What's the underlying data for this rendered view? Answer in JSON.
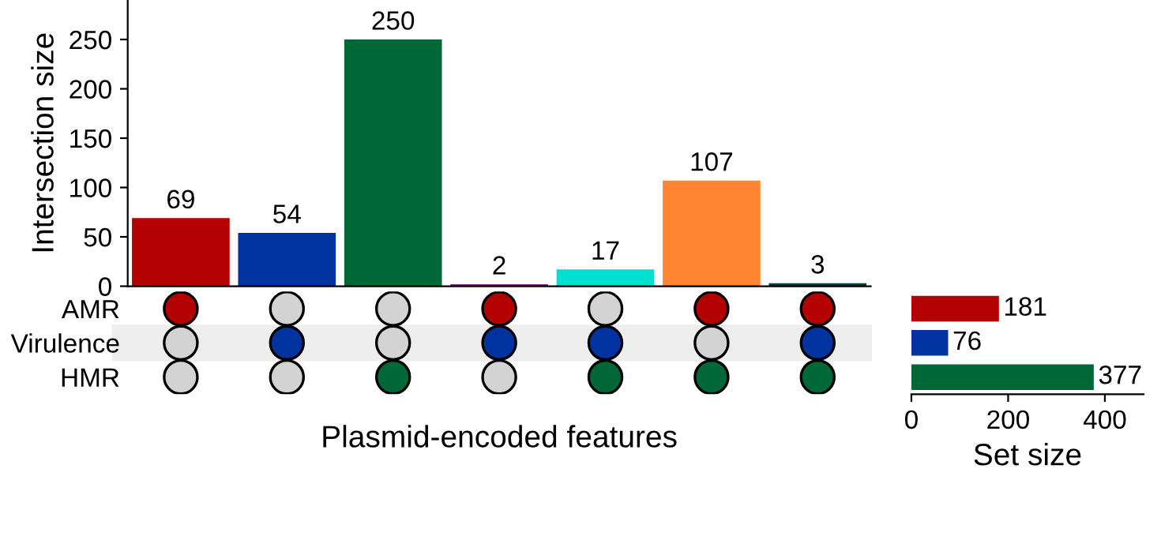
{
  "chart_data": [
    {
      "type": "bar",
      "ylabel": "Intersection size",
      "categories": [
        null,
        null,
        null,
        null,
        null,
        null,
        null
      ],
      "values": [
        69,
        54,
        250,
        2,
        17,
        107,
        3
      ],
      "colors": [
        "#b30000",
        "#0033a0",
        "#006837",
        "#7b2a80",
        "#00e0d0",
        "#ff8533",
        "#0b3d3d"
      ],
      "ylim": [
        0,
        290
      ],
      "yticks": [
        0,
        50,
        100,
        150,
        200,
        250
      ],
      "data_labels": true,
      "grid": false,
      "tick_labels": "y"
    },
    {
      "type": "other",
      "xlabel": "Plasmid-encoded features",
      "y_categories": [
        "AMR",
        "Virulence",
        "HMR"
      ]
    },
    {
      "type": "bar",
      "orientation": "horizontal",
      "xlabel": "Set size",
      "categories": [
        null,
        null,
        null
      ],
      "values": [
        181,
        76,
        377
      ],
      "colors": [
        "#b30000",
        "#0033a0",
        "#006837"
      ],
      "xlim": [
        0,
        480
      ],
      "xticks": [
        0,
        200,
        400
      ],
      "data_labels": true,
      "grid": false,
      "tick_labels": "x"
    }
  ]
}
